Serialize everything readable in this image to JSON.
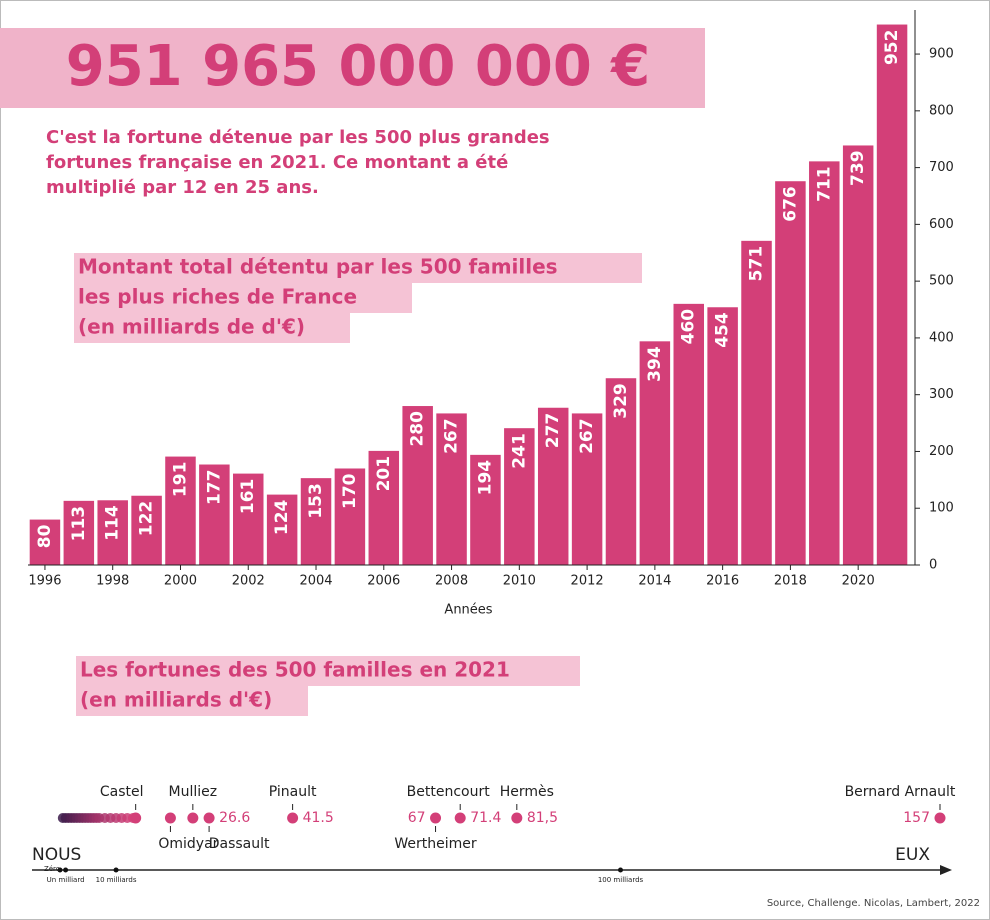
{
  "headline": "951 965 000 000 €",
  "intro": [
    "C'est la fortune détenue par les 500 plus grandes",
    "fortunes française en 2021. Ce montant a été",
    "multiplié par 12 en 25 ans."
  ],
  "source": "Source, Challenge. Nicolas, Lambert, 2022",
  "chart_data": [
    {
      "type": "bar",
      "title": [
        "Montant total détentu par les 500 familles",
        "les plus riches de France",
        "(en milliards de d'€)"
      ],
      "x_label": "Années",
      "x": [
        1996,
        1997,
        1998,
        1999,
        2000,
        2001,
        2002,
        2003,
        2004,
        2005,
        2006,
        2007,
        2008,
        2009,
        2010,
        2011,
        2012,
        2013,
        2014,
        2015,
        2016,
        2017,
        2018,
        2019,
        2020,
        2021
      ],
      "values": [
        80,
        113,
        114,
        122,
        191,
        177,
        161,
        124,
        153,
        170,
        201,
        280,
        267,
        194,
        241,
        277,
        267,
        329,
        394,
        460,
        454,
        571,
        676,
        711,
        739,
        952
      ],
      "color": "#d33f78",
      "xlim": [
        1995.5,
        2021.5
      ],
      "xticks": [
        1996,
        1998,
        2000,
        2002,
        2004,
        2006,
        2008,
        2010,
        2012,
        2014,
        2016,
        2018,
        2020
      ],
      "ylim": [
        0,
        960
      ],
      "yticks": [
        0,
        100,
        200,
        300,
        400,
        500,
        600,
        700,
        800,
        900
      ],
      "y_axis_side": "right"
    },
    {
      "type": "strip",
      "title": [
        "Les fortunes des 500 familles en 2021",
        "(en milliards d'€)"
      ],
      "axis_start": "NOUS",
      "axis_end": "EUX",
      "xlim": [
        0,
        157
      ],
      "xticks": [
        {
          "value": 0,
          "label": "Zéro"
        },
        {
          "value": 1,
          "label": "Un milliard"
        },
        {
          "value": 10,
          "label": "10 milliards"
        },
        {
          "value": 100,
          "label": "100 milliards"
        }
      ],
      "others": [
        0.5,
        1,
        1.5,
        2,
        2.5,
        3,
        3.5,
        4,
        4.5,
        5,
        5.5,
        6,
        6.5,
        7,
        8,
        9,
        10,
        11,
        12,
        13
      ],
      "others_colors": [
        "#3b1a4a",
        "#d33f78"
      ],
      "points": [
        {
          "name": "Castel",
          "value": 13.5
        },
        {
          "name": "Omidyar",
          "value": 19.7
        },
        {
          "name": "Mulliez",
          "value": 23.7
        },
        {
          "name": "Dassault",
          "value": 26.6,
          "value_label": "26.6"
        },
        {
          "name": "Pinault",
          "value": 41.5,
          "value_label": "41.5"
        },
        {
          "name": "Wertheimer",
          "value": 67,
          "value_label": "67"
        },
        {
          "name": "Bettencourt",
          "value": 71.4,
          "value_label": "71.4"
        },
        {
          "name": "Hermès",
          "value": 81.5,
          "value_label": "81,5"
        },
        {
          "name": "Bernard Arnault",
          "value": 157,
          "value_label": "157"
        }
      ],
      "color": "#d33f78"
    }
  ]
}
